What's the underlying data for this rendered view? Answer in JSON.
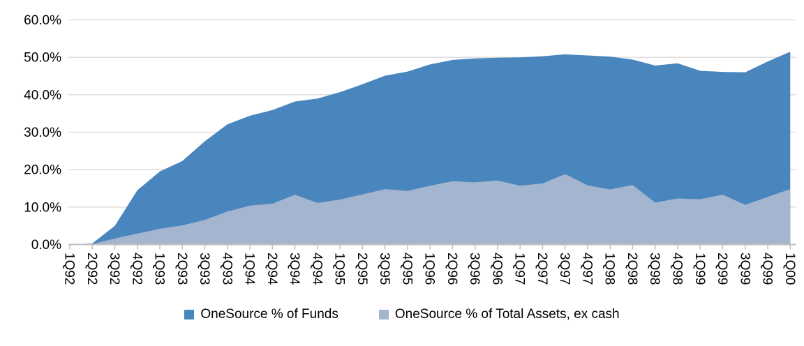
{
  "chart_data": {
    "type": "area",
    "title": "",
    "mode": "overlay",
    "categories": [
      "1Q92",
      "2Q92",
      "3Q92",
      "4Q92",
      "1Q93",
      "2Q93",
      "3Q93",
      "4Q93",
      "1Q94",
      "2Q94",
      "3Q94",
      "4Q94",
      "1Q95",
      "2Q95",
      "3Q95",
      "4Q95",
      "1Q96",
      "2Q96",
      "3Q96",
      "4Q96",
      "1Q97",
      "2Q97",
      "3Q97",
      "4Q97",
      "1Q98",
      "2Q98",
      "3Q98",
      "4Q98",
      "1Q99",
      "2Q99",
      "3Q99",
      "4Q99",
      "1Q00"
    ],
    "series": [
      {
        "name": "OneSource % of Funds",
        "color": "#4A86BE",
        "values": [
          0,
          0.3,
          5.0,
          14.5,
          19.5,
          22.3,
          27.6,
          32.1,
          34.4,
          35.9,
          38.2,
          39.0,
          40.7,
          42.8,
          45.1,
          46.2,
          48.1,
          49.3,
          49.7,
          49.9,
          50.0,
          50.3,
          50.8,
          50.5,
          50.2,
          49.4,
          47.8,
          48.4,
          46.4,
          46.1,
          46.0,
          48.9,
          51.5
        ]
      },
      {
        "name": "OneSource % of Total Assets, ex cash",
        "color": "#A4B5CF",
        "values": [
          0,
          0.1,
          1.6,
          2.9,
          4.2,
          5.1,
          6.6,
          8.8,
          10.4,
          10.9,
          13.3,
          11.1,
          12.0,
          13.4,
          14.8,
          14.3,
          15.7,
          16.9,
          16.6,
          17.1,
          15.7,
          16.3,
          18.8,
          15.8,
          14.7,
          15.9,
          11.2,
          12.3,
          12.1,
          13.3,
          10.6,
          12.7,
          14.8
        ]
      }
    ],
    "y_axis": {
      "ticks": [
        {
          "label": "0.0%",
          "value": 0
        },
        {
          "label": "10.0%",
          "value": 10
        },
        {
          "label": "20.0%",
          "value": 20
        },
        {
          "label": "30.0%",
          "value": 30
        },
        {
          "label": "40.0%",
          "value": 40
        },
        {
          "label": "50.0%",
          "value": 50
        },
        {
          "label": "60.0%",
          "value": 60
        }
      ]
    },
    "ylim": [
      0,
      60
    ],
    "grid": true,
    "grid_color": "#D9D9D9",
    "axis_color": "#BFBFBF",
    "text_color": "#000000",
    "legend_position": "bottom"
  }
}
